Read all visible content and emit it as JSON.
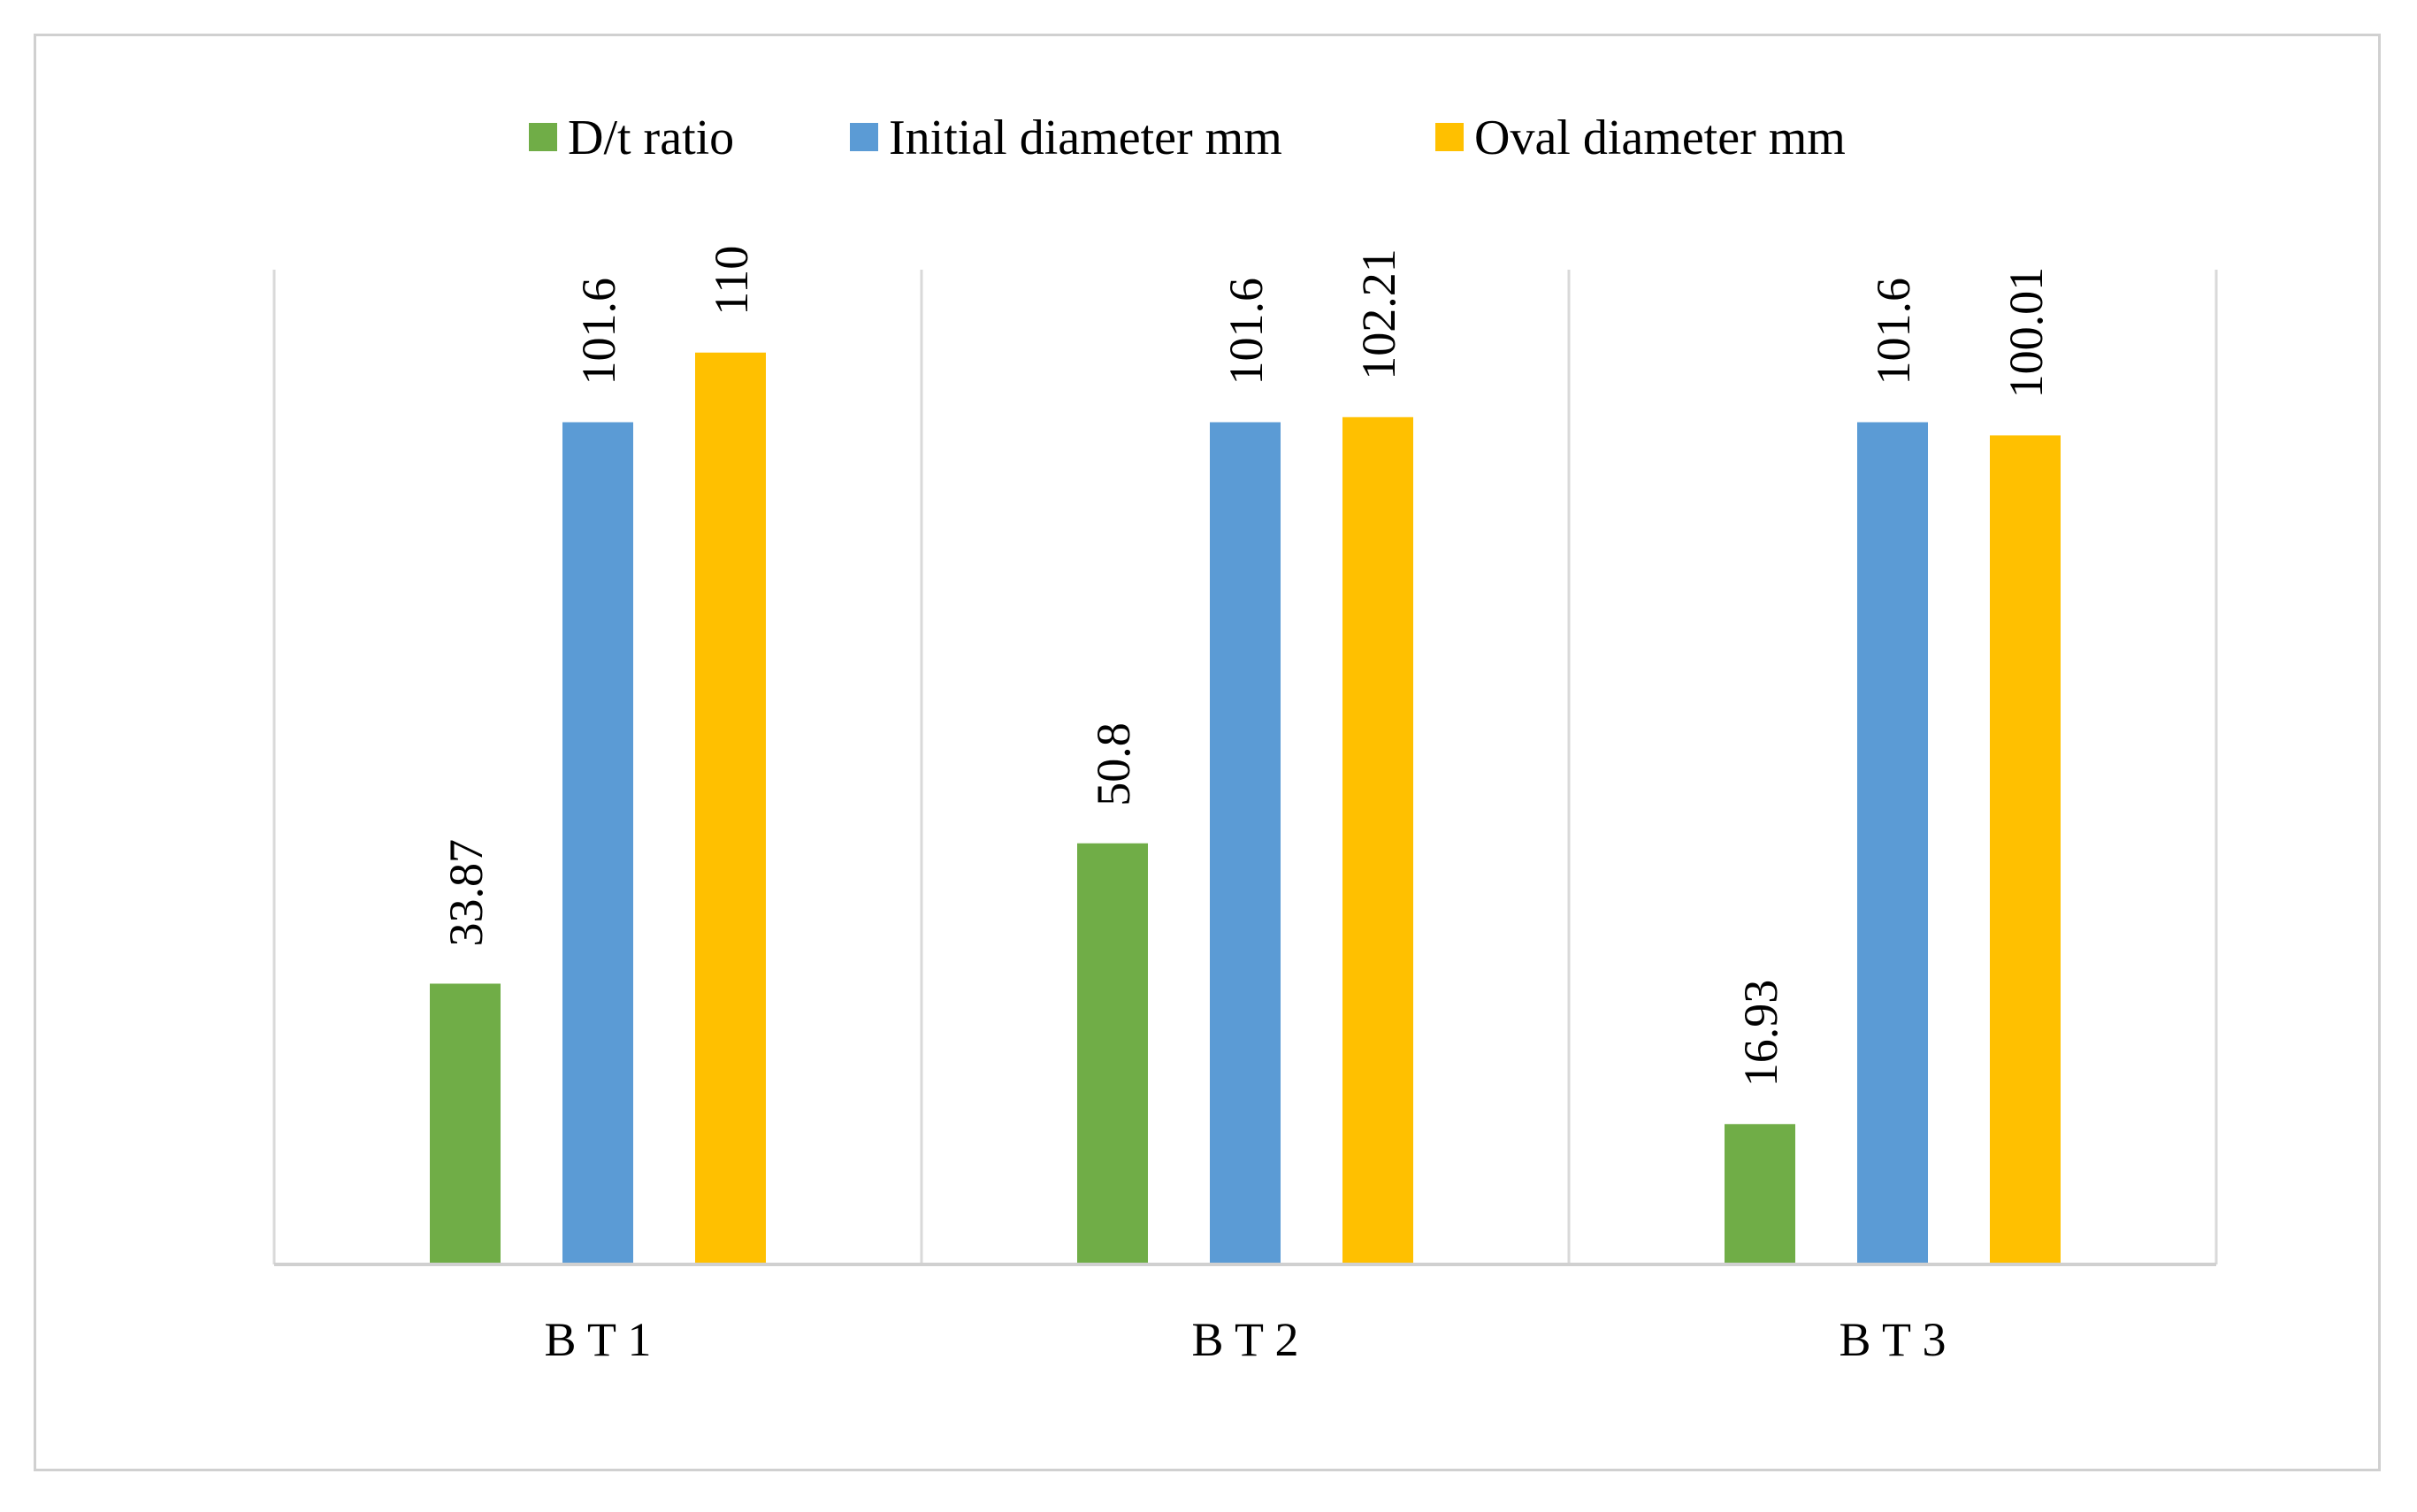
{
  "chart_data": {
    "type": "bar",
    "title": "",
    "xlabel": "",
    "ylabel": "",
    "categories": [
      "B T 1",
      "B T 2",
      "B T 3"
    ],
    "series": [
      {
        "name": "D/t ratio",
        "values": [
          33.87,
          50.8,
          16.93
        ],
        "labels": [
          "33.87",
          "50.8",
          "16.93"
        ],
        "color": "#70ad47"
      },
      {
        "name": "Initial diameter mm",
        "values": [
          101.6,
          101.6,
          101.6
        ],
        "labels": [
          "101.6",
          "101.6",
          "101.6"
        ],
        "color": "#5b9bd5"
      },
      {
        "name": "Oval diameter mm",
        "values": [
          110,
          102.21,
          100.01
        ],
        "labels": [
          "110",
          "102.21",
          "100.01"
        ],
        "color": "#ffc000"
      }
    ],
    "ylim": [
      0,
      120
    ],
    "grid": false,
    "legend": "top-center",
    "data_label_orientation": "vertical"
  }
}
